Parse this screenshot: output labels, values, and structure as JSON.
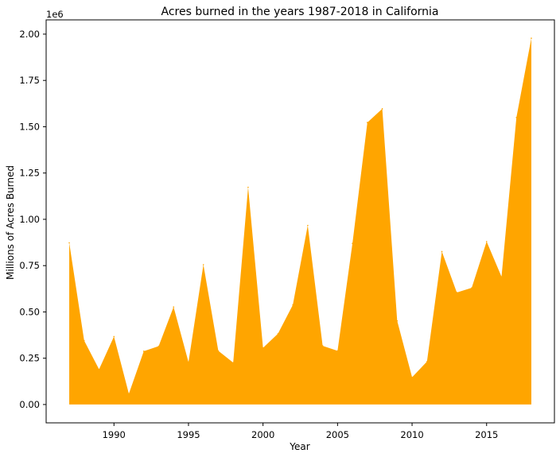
{
  "chart_data": {
    "type": "area",
    "title": "Acres burned in the years 1987-2018 in California",
    "xlabel": "Year",
    "ylabel": "Millions of Acres Burned",
    "offset_label": "1e6",
    "xlim": [
      1985.45,
      2019.55
    ],
    "ylim": [
      -0.099,
      2.077
    ],
    "x_ticks": [
      1990,
      1995,
      2000,
      2005,
      2010,
      2015
    ],
    "y_ticks": [
      "0.00",
      "0.25",
      "0.50",
      "0.75",
      "1.00",
      "1.25",
      "1.50",
      "1.75",
      "2.00"
    ],
    "y_tick_values": [
      0,
      0.25,
      0.5,
      0.75,
      1.0,
      1.25,
      1.5,
      1.75,
      2.0
    ],
    "grid": false,
    "fill_color": "#ffa500",
    "x": [
      1987,
      1988,
      1989,
      1990,
      1991,
      1992,
      1993,
      1994,
      1995,
      1996,
      1997,
      1998,
      1999,
      2000,
      2001,
      2002,
      2003,
      2004,
      2005,
      2006,
      2007,
      2008,
      2009,
      2010,
      2011,
      2012,
      2013,
      2014,
      2015,
      2016,
      2017,
      2018
    ],
    "values": [
      0.873,
      0.345,
      0.19,
      0.367,
      0.058,
      0.288,
      0.315,
      0.527,
      0.229,
      0.755,
      0.29,
      0.226,
      1.173,
      0.306,
      0.382,
      0.538,
      0.967,
      0.317,
      0.29,
      0.87,
      1.523,
      1.597,
      0.452,
      0.147,
      0.232,
      0.826,
      0.605,
      0.63,
      0.88,
      0.69,
      1.55,
      1.978
    ]
  }
}
